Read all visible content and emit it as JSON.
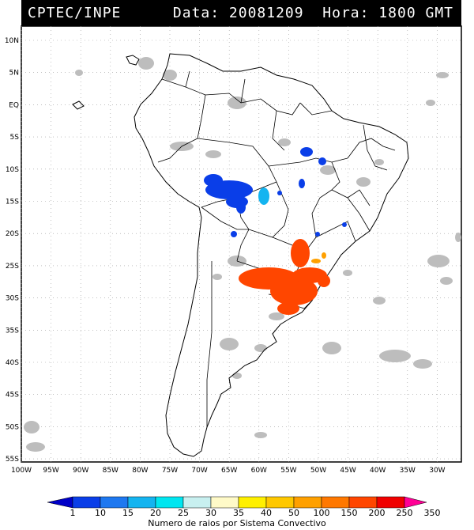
{
  "header": {
    "left": "CPTEC/INPE",
    "right": "Data: 20081209  Hora: 1800 GMT"
  },
  "lat_labels": [
    "10N",
    "5N",
    "EQ",
    "5S",
    "10S",
    "15S",
    "20S",
    "25S",
    "30S",
    "35S",
    "40S",
    "45S",
    "50S",
    "55S"
  ],
  "lon_labels": [
    "100W",
    "95W",
    "90W",
    "85W",
    "80W",
    "75W",
    "70W",
    "65W",
    "60W",
    "55W",
    "50W",
    "45W",
    "40W",
    "35W",
    "30W"
  ],
  "legend": {
    "values": [
      "1",
      "10",
      "15",
      "20",
      "25",
      "30",
      "35",
      "40",
      "50",
      "100",
      "150",
      "200",
      "250",
      "350"
    ],
    "colors": [
      "#0000c8",
      "#0a3ee8",
      "#1e78f0",
      "#14b4f0",
      "#00e6f0",
      "#c8f0f0",
      "#fffac8",
      "#fff000",
      "#ffc800",
      "#ffa000",
      "#ff7800",
      "#ff4600",
      "#f00000",
      "#ff0096"
    ],
    "caption": "Numero de raios por Sistema Convectivo"
  }
}
